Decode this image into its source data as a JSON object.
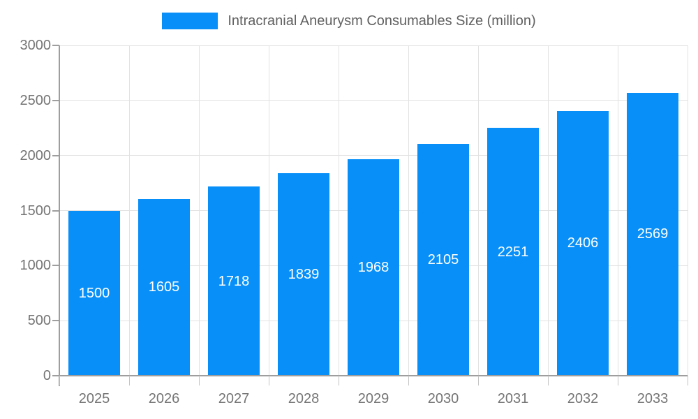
{
  "legend": {
    "label": "Intracranial Aneurysm Consumables Size (million)"
  },
  "colors": {
    "bar": "#0990f8",
    "grid": "#e2e2e2",
    "axis": "#9e9e9e",
    "axis_text": "#757575",
    "legend_text": "#616161",
    "bar_label_text": "#ffffff",
    "background": "#ffffff"
  },
  "chart_data": {
    "type": "bar",
    "title": "Intracranial Aneurysm Consumables Size (million)",
    "categories": [
      "2025",
      "2026",
      "2027",
      "2028",
      "2029",
      "2030",
      "2031",
      "2032",
      "2033"
    ],
    "values": [
      1500,
      1605,
      1718,
      1839,
      1968,
      2105,
      2251,
      2406,
      2569
    ],
    "xlabel": "",
    "ylabel": "",
    "ylim": [
      0,
      3000
    ],
    "yticks": [
      0,
      500,
      1000,
      1500,
      2000,
      2500,
      3000
    ],
    "grid": true,
    "legend_position": "top",
    "bar_labels": true
  }
}
